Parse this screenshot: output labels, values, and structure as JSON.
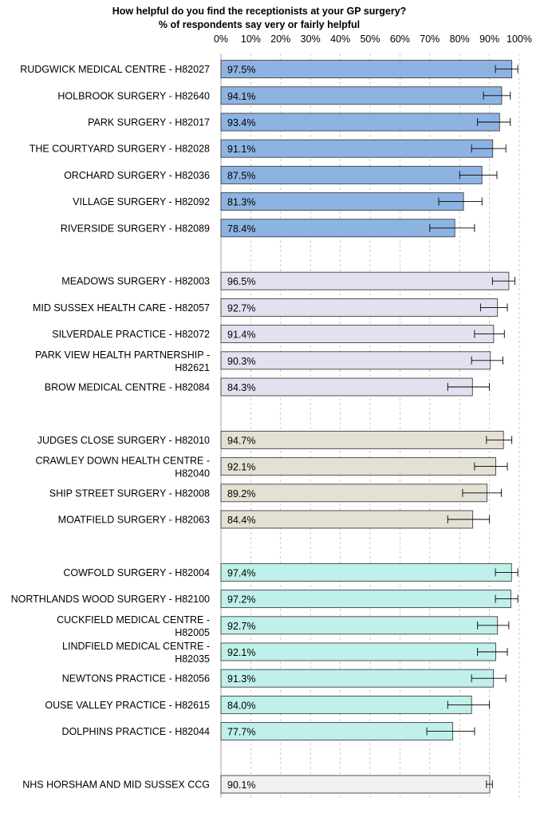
{
  "chart_data": {
    "type": "bar",
    "orientation": "horizontal",
    "title": "How helpful do you find the receptionists at your GP surgery?",
    "subtitle": "% of respondents say very or fairly helpful",
    "xlim": [
      0,
      100
    ],
    "x_ticks": [
      "0%",
      "10%",
      "20%",
      "30%",
      "40%",
      "50%",
      "60%",
      "70%",
      "80%",
      "90%",
      "100%"
    ],
    "grid": "vertical dashed",
    "legend": "none",
    "groups": [
      {
        "color": "#8db3e2",
        "bars": [
          {
            "label": "RUDGWICK MEDICAL CENTRE - H82027",
            "value": 97.5,
            "value_label": "97.5%",
            "ci": [
              92.0,
              99.5
            ]
          },
          {
            "label": "HOLBROOK SURGERY - H82640",
            "value": 94.1,
            "value_label": "94.1%",
            "ci": [
              88.0,
              97.0
            ]
          },
          {
            "label": "PARK SURGERY - H82017",
            "value": 93.4,
            "value_label": "93.4%",
            "ci": [
              86.0,
              97.0
            ]
          },
          {
            "label": "THE COURTYARD SURGERY - H82028",
            "value": 91.1,
            "value_label": "91.1%",
            "ci": [
              84.0,
              95.5
            ]
          },
          {
            "label": "ORCHARD SURGERY - H82036",
            "value": 87.5,
            "value_label": "87.5%",
            "ci": [
              80.0,
              92.5
            ]
          },
          {
            "label": "VILLAGE SURGERY - H82092",
            "value": 81.3,
            "value_label": "81.3%",
            "ci": [
              73.0,
              87.5
            ]
          },
          {
            "label": "RIVERSIDE SURGERY - H82089",
            "value": 78.4,
            "value_label": "78.4%",
            "ci": [
              70.0,
              85.0
            ]
          }
        ]
      },
      {
        "color": "#e4e0ef",
        "bars": [
          {
            "label": "MEADOWS SURGERY - H82003",
            "value": 96.5,
            "value_label": "96.5%",
            "ci": [
              91.0,
              98.5
            ]
          },
          {
            "label": "MID SUSSEX HEALTH CARE - H82057",
            "value": 92.7,
            "value_label": "92.7%",
            "ci": [
              87.0,
              96.0
            ]
          },
          {
            "label": "SILVERDALE PRACTICE - H82072",
            "value": 91.4,
            "value_label": "91.4%",
            "ci": [
              85.0,
              95.0
            ]
          },
          {
            "label": "PARK VIEW HEALTH PARTNERSHIP - H82621",
            "value": 90.3,
            "value_label": "90.3%",
            "ci": [
              84.0,
              94.5
            ]
          },
          {
            "label": "BROW MEDICAL CENTRE - H82084",
            "value": 84.3,
            "value_label": "84.3%",
            "ci": [
              76.0,
              90.0
            ]
          }
        ]
      },
      {
        "color": "#e4e0d4",
        "bars": [
          {
            "label": "JUDGES CLOSE SURGERY - H82010",
            "value": 94.7,
            "value_label": "94.7%",
            "ci": [
              89.0,
              97.5
            ]
          },
          {
            "label": "CRAWLEY DOWN HEALTH CENTRE - H82040",
            "value": 92.1,
            "value_label": "92.1%",
            "ci": [
              85.0,
              96.0
            ]
          },
          {
            "label": "SHIP STREET SURGERY - H82008",
            "value": 89.2,
            "value_label": "89.2%",
            "ci": [
              81.0,
              94.0
            ]
          },
          {
            "label": "MOATFIELD SURGERY - H82063",
            "value": 84.4,
            "value_label": "84.4%",
            "ci": [
              76.0,
              90.0
            ]
          }
        ]
      },
      {
        "color": "#bff0ea",
        "bars": [
          {
            "label": "COWFOLD SURGERY - H82004",
            "value": 97.4,
            "value_label": "97.4%",
            "ci": [
              92.0,
              99.5
            ]
          },
          {
            "label": "NORTHLANDS WOOD SURGERY - H82100",
            "value": 97.2,
            "value_label": "97.2%",
            "ci": [
              92.0,
              99.5
            ]
          },
          {
            "label": "CUCKFIELD MEDICAL CENTRE - H82005",
            "value": 92.7,
            "value_label": "92.7%",
            "ci": [
              86.0,
              96.5
            ]
          },
          {
            "label": "LINDFIELD MEDICAL CENTRE - H82035",
            "value": 92.1,
            "value_label": "92.1%",
            "ci": [
              86.0,
              96.0
            ]
          },
          {
            "label": "NEWTONS PRACTICE - H82056",
            "value": 91.3,
            "value_label": "91.3%",
            "ci": [
              84.0,
              95.5
            ]
          },
          {
            "label": "OUSE VALLEY PRACTICE - H82615",
            "value": 84.0,
            "value_label": "84.0%",
            "ci": [
              76.0,
              90.0
            ]
          },
          {
            "label": "DOLPHINS PRACTICE - H82044",
            "value": 77.7,
            "value_label": "77.7%",
            "ci": [
              69.0,
              85.0
            ]
          }
        ]
      },
      {
        "color": "#f0f0f0",
        "bars": [
          {
            "label": "NHS HORSHAM AND MID SUSSEX CCG",
            "value": 90.1,
            "value_label": "90.1%",
            "ci": [
              89.0,
              91.0
            ]
          }
        ]
      }
    ]
  }
}
